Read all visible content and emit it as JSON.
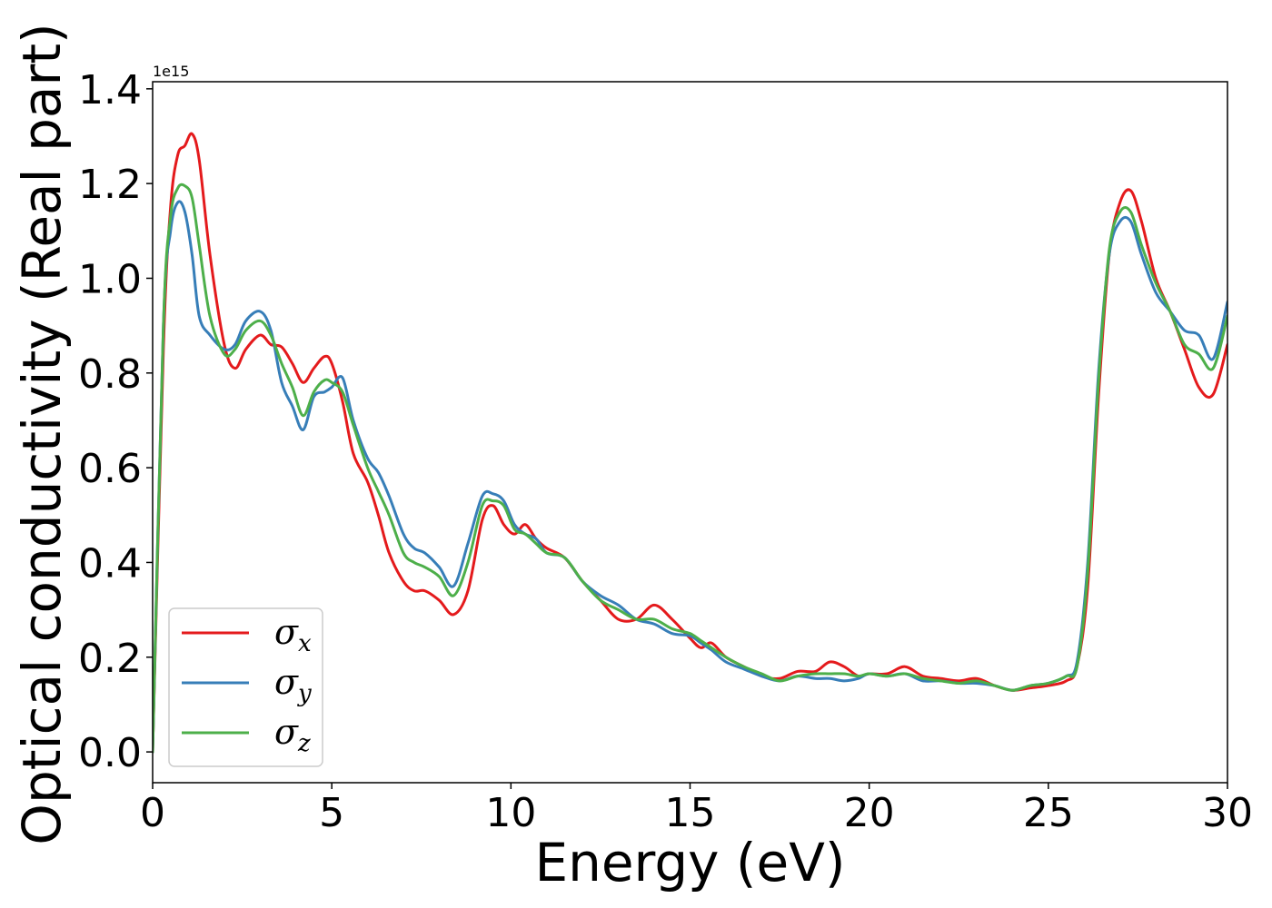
{
  "chart_data": {
    "type": "line",
    "title": "",
    "xlabel": "Energy (eV)",
    "ylabel": "Optical conductivity (Real part)",
    "y_offset_label": "1e15",
    "xlim": [
      0,
      30
    ],
    "ylim": [
      -0.065,
      1.415
    ],
    "x_ticks": [
      0,
      5,
      10,
      15,
      20,
      25,
      30
    ],
    "x_tick_labels": [
      "0",
      "5",
      "10",
      "15",
      "20",
      "25",
      "30"
    ],
    "y_ticks": [
      0.0,
      0.2,
      0.4,
      0.6,
      0.8,
      1.0,
      1.2,
      1.4
    ],
    "y_tick_labels": [
      "0.0",
      "0.2",
      "0.4",
      "0.6",
      "0.8",
      "1.0",
      "1.2",
      "1.4"
    ],
    "grid": false,
    "legend_position": "lower-left",
    "series": [
      {
        "name": "σx",
        "symbol": "σ",
        "subscript": "x",
        "color": "#e41a1c",
        "x": [
          0,
          0.3,
          0.5,
          0.7,
          0.9,
          1.1,
          1.3,
          1.6,
          2.0,
          2.3,
          2.6,
          3.0,
          3.3,
          3.6,
          3.9,
          4.2,
          4.5,
          4.8,
          5.0,
          5.3,
          5.6,
          6.0,
          6.3,
          6.6,
          7.0,
          7.3,
          7.6,
          8.0,
          8.4,
          8.8,
          9.2,
          9.5,
          9.8,
          10.1,
          10.4,
          10.7,
          11.0,
          11.5,
          12.0,
          12.5,
          13.0,
          13.5,
          14.0,
          14.5,
          15.0,
          15.3,
          15.6,
          16.0,
          16.5,
          17.0,
          17.5,
          18.0,
          18.5,
          18.9,
          19.3,
          19.7,
          20.0,
          20.5,
          21.0,
          21.5,
          22.0,
          22.5,
          23.0,
          23.5,
          24.0,
          24.5,
          25.0,
          25.5,
          25.8,
          26.1,
          26.4,
          26.7,
          27.0,
          27.3,
          27.6,
          28.0,
          28.4,
          28.8,
          29.2,
          29.6,
          30.0
        ],
        "values": [
          0.0,
          0.85,
          1.15,
          1.26,
          1.28,
          1.305,
          1.25,
          1.05,
          0.86,
          0.81,
          0.85,
          0.88,
          0.86,
          0.855,
          0.82,
          0.78,
          0.81,
          0.835,
          0.82,
          0.74,
          0.63,
          0.57,
          0.5,
          0.42,
          0.36,
          0.34,
          0.34,
          0.32,
          0.29,
          0.34,
          0.49,
          0.52,
          0.48,
          0.46,
          0.48,
          0.45,
          0.43,
          0.41,
          0.36,
          0.32,
          0.28,
          0.28,
          0.31,
          0.28,
          0.24,
          0.22,
          0.23,
          0.2,
          0.18,
          0.16,
          0.155,
          0.17,
          0.17,
          0.19,
          0.18,
          0.16,
          0.165,
          0.165,
          0.18,
          0.16,
          0.155,
          0.15,
          0.155,
          0.14,
          0.13,
          0.135,
          0.14,
          0.15,
          0.18,
          0.35,
          0.75,
          1.05,
          1.16,
          1.185,
          1.12,
          1.0,
          0.93,
          0.85,
          0.77,
          0.755,
          0.86
        ]
      },
      {
        "name": "σy",
        "symbol": "σ",
        "subscript": "y",
        "color": "#377eb8",
        "x": [
          0,
          0.3,
          0.5,
          0.7,
          0.9,
          1.1,
          1.3,
          1.6,
          2.0,
          2.3,
          2.6,
          3.0,
          3.3,
          3.6,
          3.9,
          4.2,
          4.5,
          4.8,
          5.0,
          5.3,
          5.6,
          6.0,
          6.3,
          6.6,
          7.0,
          7.3,
          7.6,
          8.0,
          8.4,
          8.8,
          9.2,
          9.5,
          9.8,
          10.1,
          10.4,
          10.7,
          11.0,
          11.5,
          12.0,
          12.5,
          13.0,
          13.5,
          14.0,
          14.5,
          15.0,
          15.3,
          15.6,
          16.0,
          16.5,
          17.0,
          17.5,
          18.0,
          18.5,
          18.9,
          19.3,
          19.7,
          20.0,
          20.5,
          21.0,
          21.5,
          22.0,
          22.5,
          23.0,
          23.5,
          24.0,
          24.5,
          25.0,
          25.5,
          25.8,
          26.1,
          26.4,
          26.7,
          27.0,
          27.3,
          27.6,
          28.0,
          28.4,
          28.8,
          29.2,
          29.6,
          30.0
        ],
        "values": [
          0.0,
          0.9,
          1.1,
          1.16,
          1.14,
          1.05,
          0.92,
          0.88,
          0.85,
          0.86,
          0.91,
          0.93,
          0.89,
          0.78,
          0.73,
          0.68,
          0.75,
          0.76,
          0.77,
          0.79,
          0.7,
          0.62,
          0.59,
          0.54,
          0.46,
          0.43,
          0.42,
          0.39,
          0.35,
          0.44,
          0.54,
          0.545,
          0.53,
          0.48,
          0.46,
          0.45,
          0.42,
          0.41,
          0.36,
          0.33,
          0.31,
          0.28,
          0.27,
          0.25,
          0.245,
          0.23,
          0.215,
          0.19,
          0.175,
          0.16,
          0.15,
          0.16,
          0.155,
          0.155,
          0.15,
          0.155,
          0.165,
          0.16,
          0.165,
          0.15,
          0.15,
          0.145,
          0.145,
          0.14,
          0.13,
          0.14,
          0.145,
          0.16,
          0.19,
          0.4,
          0.8,
          1.05,
          1.12,
          1.12,
          1.05,
          0.97,
          0.93,
          0.89,
          0.88,
          0.83,
          0.95
        ]
      },
      {
        "name": "σz",
        "symbol": "σ",
        "subscript": "z",
        "color": "#4daf4a",
        "x": [
          0,
          0.3,
          0.5,
          0.7,
          0.9,
          1.1,
          1.3,
          1.6,
          2.0,
          2.3,
          2.6,
          3.0,
          3.3,
          3.6,
          3.9,
          4.2,
          4.5,
          4.8,
          5.0,
          5.3,
          5.6,
          6.0,
          6.3,
          6.6,
          7.0,
          7.3,
          7.6,
          8.0,
          8.4,
          8.8,
          9.2,
          9.5,
          9.8,
          10.1,
          10.4,
          10.7,
          11.0,
          11.5,
          12.0,
          12.5,
          13.0,
          13.5,
          14.0,
          14.5,
          15.0,
          15.3,
          15.6,
          16.0,
          16.5,
          17.0,
          17.5,
          18.0,
          18.5,
          18.9,
          19.3,
          19.7,
          20.0,
          20.5,
          21.0,
          21.5,
          22.0,
          22.5,
          23.0,
          23.5,
          24.0,
          24.5,
          25.0,
          25.5,
          25.8,
          26.1,
          26.4,
          26.7,
          27.0,
          27.3,
          27.6,
          28.0,
          28.4,
          28.8,
          29.2,
          29.6,
          30.0
        ],
        "values": [
          0.0,
          0.9,
          1.13,
          1.19,
          1.195,
          1.17,
          1.07,
          0.92,
          0.84,
          0.85,
          0.89,
          0.91,
          0.88,
          0.82,
          0.77,
          0.71,
          0.76,
          0.785,
          0.78,
          0.76,
          0.69,
          0.6,
          0.55,
          0.5,
          0.42,
          0.4,
          0.39,
          0.37,
          0.33,
          0.4,
          0.52,
          0.53,
          0.52,
          0.47,
          0.46,
          0.44,
          0.42,
          0.41,
          0.36,
          0.32,
          0.3,
          0.28,
          0.28,
          0.26,
          0.25,
          0.235,
          0.22,
          0.2,
          0.18,
          0.165,
          0.15,
          0.16,
          0.165,
          0.165,
          0.165,
          0.16,
          0.165,
          0.16,
          0.165,
          0.155,
          0.15,
          0.145,
          0.15,
          0.14,
          0.13,
          0.14,
          0.145,
          0.16,
          0.18,
          0.38,
          0.78,
          1.06,
          1.14,
          1.14,
          1.07,
          0.99,
          0.93,
          0.86,
          0.84,
          0.81,
          0.92
        ]
      }
    ]
  }
}
